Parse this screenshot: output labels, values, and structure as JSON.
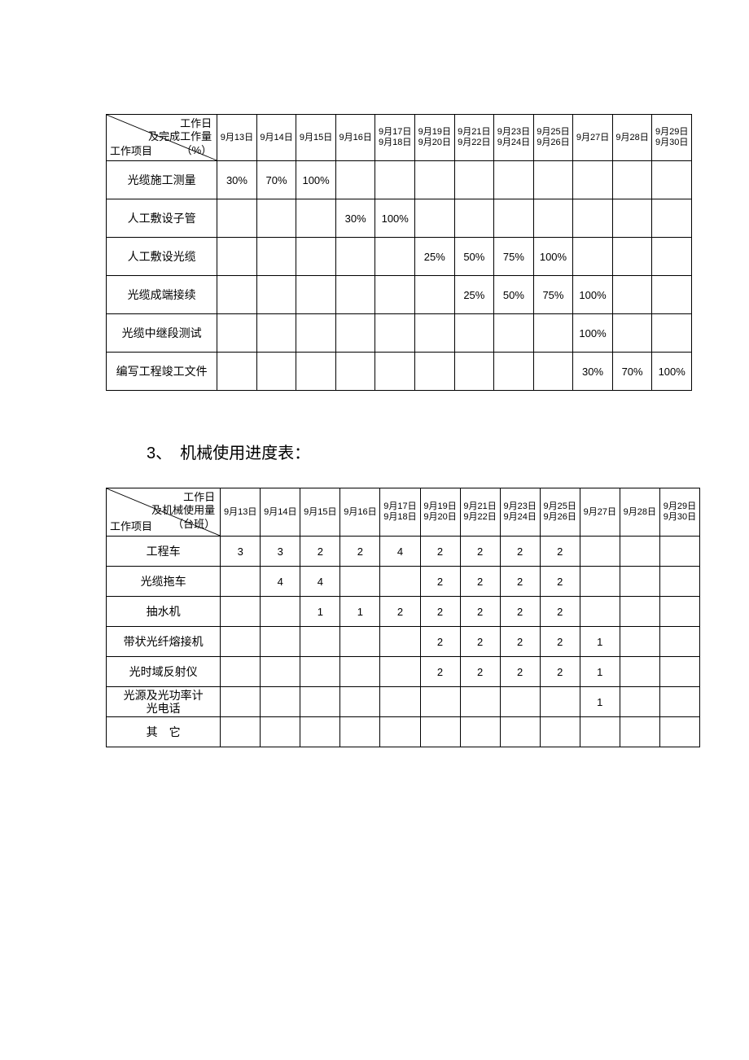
{
  "colors": {
    "border": "#000000",
    "background": "#ffffff",
    "text": "#000000"
  },
  "typography": {
    "header_font_size": 13,
    "date_font_size": 11,
    "row_label_font_size": 14,
    "cell_font_size": 13,
    "section_title_font_size": 20
  },
  "table1": {
    "type": "table",
    "header_diag": {
      "top_line1": "工作日",
      "top_line2": "及完成工作量",
      "top_line3": "（%）",
      "bottom": "工作项目"
    },
    "date_cols": [
      {
        "line1": "9月13日",
        "line2": ""
      },
      {
        "line1": "9月14日",
        "line2": ""
      },
      {
        "line1": "9月15日",
        "line2": ""
      },
      {
        "line1": "9月16日",
        "line2": ""
      },
      {
        "line1": "9月17日",
        "line2": "9月18日"
      },
      {
        "line1": "9月19日",
        "line2": "9月20日"
      },
      {
        "line1": "9月21日",
        "line2": "9月22日"
      },
      {
        "line1": "9月23日",
        "line2": "9月24日"
      },
      {
        "line1": "9月25日",
        "line2": "9月26日"
      },
      {
        "line1": "9月27日",
        "line2": ""
      },
      {
        "line1": "9月28日",
        "line2": ""
      },
      {
        "line1": "9月29日",
        "line2": "9月30日"
      }
    ],
    "rows": [
      {
        "label": "光缆施工测量",
        "cells": [
          "30%",
          "70%",
          "100%",
          "",
          "",
          "",
          "",
          "",
          "",
          "",
          "",
          ""
        ]
      },
      {
        "label": "人工敷设子管",
        "cells": [
          "",
          "",
          "",
          "30%",
          "100%",
          "",
          "",
          "",
          "",
          "",
          "",
          ""
        ]
      },
      {
        "label": "人工敷设光缆",
        "cells": [
          "",
          "",
          "",
          "",
          "",
          "25%",
          "50%",
          "75%",
          "100%",
          "",
          "",
          ""
        ]
      },
      {
        "label": "光缆成端接续",
        "cells": [
          "",
          "",
          "",
          "",
          "",
          "",
          "25%",
          "50%",
          "75%",
          "100%",
          "",
          ""
        ]
      },
      {
        "label": "光缆中继段测试",
        "cells": [
          "",
          "",
          "",
          "",
          "",
          "",
          "",
          "",
          "",
          "100%",
          "",
          ""
        ]
      },
      {
        "label": "编写工程竣工文件",
        "cells": [
          "",
          "",
          "",
          "",
          "",
          "",
          "",
          "",
          "",
          "30%",
          "70%",
          "100%"
        ]
      }
    ]
  },
  "section_title": "3、　机械使用进度表：",
  "table2": {
    "type": "table",
    "header_diag": {
      "top_line1": "工作日",
      "top_line2": "及机械使用量",
      "top_line3": "（台班）",
      "bottom": "工作项目"
    },
    "date_cols": [
      {
        "line1": "9月13日",
        "line2": ""
      },
      {
        "line1": "9月14日",
        "line2": ""
      },
      {
        "line1": "9月15日",
        "line2": ""
      },
      {
        "line1": "9月16日",
        "line2": ""
      },
      {
        "line1": "9月17日",
        "line2": "9月18日"
      },
      {
        "line1": "9月19日",
        "line2": "9月20日"
      },
      {
        "line1": "9月21日",
        "line2": "9月22日"
      },
      {
        "line1": "9月23日",
        "line2": "9月24日"
      },
      {
        "line1": "9月25日",
        "line2": "9月26日"
      },
      {
        "line1": "9月27日",
        "line2": ""
      },
      {
        "line1": "9月28日",
        "line2": ""
      },
      {
        "line1": "9月29日",
        "line2": "9月30日"
      }
    ],
    "rows": [
      {
        "label": "工程车",
        "cells": [
          "3",
          "3",
          "2",
          "2",
          "4",
          "2",
          "2",
          "2",
          "2",
          "",
          "",
          ""
        ]
      },
      {
        "label": "光缆拖车",
        "cells": [
          "",
          "4",
          "4",
          "",
          "",
          "2",
          "2",
          "2",
          "2",
          "",
          "",
          ""
        ]
      },
      {
        "label": "抽水机",
        "cells": [
          "",
          "",
          "1",
          "1",
          "2",
          "2",
          "2",
          "2",
          "2",
          "",
          "",
          ""
        ]
      },
      {
        "label": "带状光纤熔接机",
        "cells": [
          "",
          "",
          "",
          "",
          "",
          "2",
          "2",
          "2",
          "2",
          "1",
          "",
          ""
        ]
      },
      {
        "label": "光时域反射仪",
        "cells": [
          "",
          "",
          "",
          "",
          "",
          "2",
          "2",
          "2",
          "2",
          "1",
          "",
          ""
        ]
      },
      {
        "label": "光源及光功率计\n光电话",
        "cells": [
          "",
          "",
          "",
          "",
          "",
          "",
          "",
          "",
          "",
          "1",
          "",
          ""
        ]
      },
      {
        "label": "其　它",
        "cells": [
          "",
          "",
          "",
          "",
          "",
          "",
          "",
          "",
          "",
          "",
          "",
          ""
        ]
      }
    ]
  }
}
